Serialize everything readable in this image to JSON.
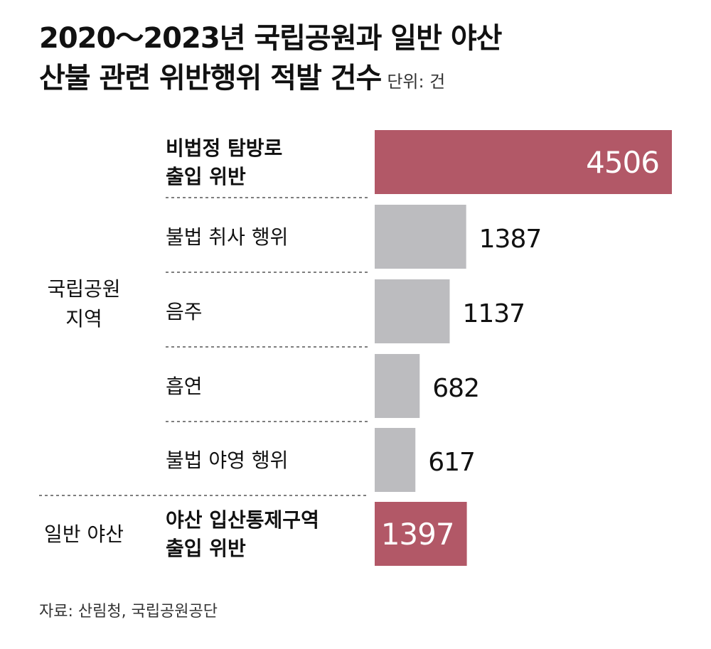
{
  "title": {
    "line1": "2020～2023년 국립공원과 일반 야산",
    "line2": "산불 관련 위반행위 적발 건수",
    "unit": "단위: 건"
  },
  "source": "자료: 산림청, 국립공원공단",
  "chart_data": {
    "type": "bar",
    "orientation": "horizontal",
    "xlim": [
      0,
      4506
    ],
    "grid": false,
    "groups": [
      {
        "label_lines": [
          "국립공원",
          "지역"
        ],
        "items": [
          0,
          1,
          2,
          3,
          4
        ]
      },
      {
        "label_lines": [
          "일반 야산"
        ],
        "items": [
          5
        ]
      }
    ],
    "categories": [
      [
        "비법정 탐방로",
        "출입 위반"
      ],
      [
        "불법 취사 행위"
      ],
      [
        "음주"
      ],
      [
        "흡연"
      ],
      [
        "불법 야영 행위"
      ],
      [
        "야산 입산통제구역",
        "출입 위반"
      ]
    ],
    "values": [
      4506,
      1387,
      1137,
      682,
      617,
      1397
    ],
    "value_labels": [
      "4506",
      "1387",
      "1137",
      "682",
      "617",
      "1397"
    ],
    "highlighted": [
      true,
      false,
      false,
      false,
      false,
      true
    ],
    "colors": {
      "highlight": "#b25867",
      "normal": "#bcbcbf",
      "highlight_text": "#ffffff",
      "divider": "#555555"
    }
  }
}
